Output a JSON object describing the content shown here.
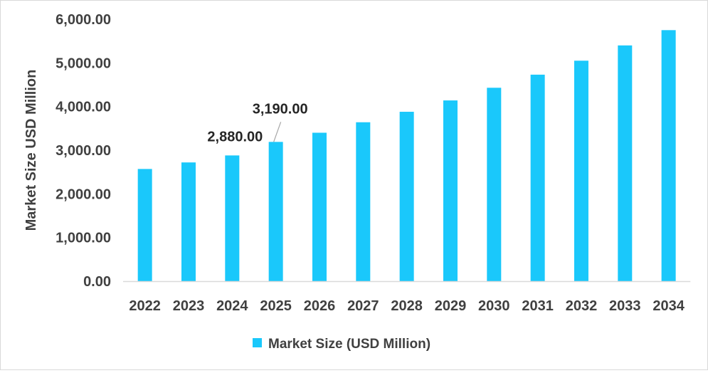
{
  "chart_data": {
    "type": "bar",
    "title": "",
    "xlabel": "",
    "ylabel": "Market Size USD Million",
    "ylim": [
      0,
      6000
    ],
    "yticks": [
      0,
      1000,
      2000,
      3000,
      4000,
      5000,
      6000
    ],
    "ytick_labels": [
      "0.00",
      "1,000.00",
      "2,000.00",
      "3,000.00",
      "4,000.00",
      "5,000.00",
      "6,000.00"
    ],
    "categories": [
      "2022",
      "2023",
      "2024",
      "2025",
      "2026",
      "2027",
      "2028",
      "2029",
      "2030",
      "2031",
      "2032",
      "2033",
      "2034"
    ],
    "series": [
      {
        "name": "Market Size (USD Million)",
        "color": "#1ac8fb",
        "values": [
          2570,
          2720,
          2880,
          3190,
          3400,
          3640,
          3880,
          4140,
          4430,
          4730,
          5050,
          5400,
          5750
        ]
      }
    ],
    "data_labels": [
      {
        "category": "2024",
        "text": "2,880.00"
      },
      {
        "category": "2025",
        "text": "3,190.00"
      }
    ],
    "grid": false,
    "legend": "bottom"
  }
}
